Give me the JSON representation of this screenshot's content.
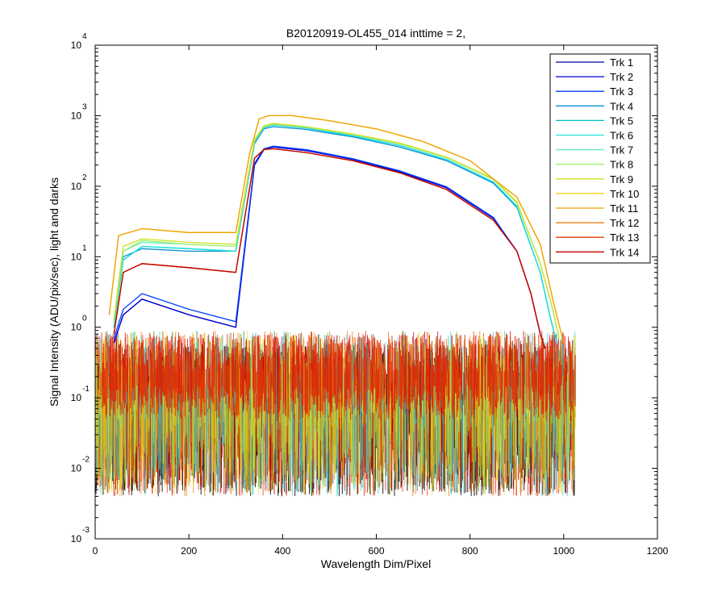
{
  "chart_data": {
    "type": "line",
    "title": "B20120919-OL455_014 inttime = 2,",
    "xlabel": "Wavelength Dim/Pixel",
    "ylabel": "Signal Intensity (ADU/pix/sec), light and darks",
    "xlim": [
      0,
      1200
    ],
    "ylim": [
      0.001,
      10000
    ],
    "yscale": "log",
    "grid": false,
    "legend_position": "top-right",
    "x_ticks": [
      {
        "label": "0",
        "value": 0
      },
      {
        "label": "200",
        "value": 200
      },
      {
        "label": "400",
        "value": 400
      },
      {
        "label": "600",
        "value": 600
      },
      {
        "label": "800",
        "value": 800
      },
      {
        "label": "1000",
        "value": 1000
      },
      {
        "label": "1200",
        "value": 1200
      }
    ],
    "y_ticks": [
      {
        "base": "10",
        "exp": "-3",
        "value": 0.001
      },
      {
        "base": "10",
        "exp": "-2",
        "value": 0.01
      },
      {
        "base": "10",
        "exp": "-1",
        "value": 0.1
      },
      {
        "base": "10",
        "exp": "0",
        "value": 1
      },
      {
        "base": "10",
        "exp": "1",
        "value": 10
      },
      {
        "base": "10",
        "exp": "2",
        "value": 100
      },
      {
        "base": "10",
        "exp": "3",
        "value": 1000
      },
      {
        "base": "10",
        "exp": "4",
        "value": 10000
      }
    ],
    "series": [
      {
        "name": "Trk 1",
        "color": "#0000a8",
        "x": [
          40,
          60,
          100,
          200,
          300,
          340,
          360,
          380,
          450,
          550,
          650,
          750,
          850,
          900,
          930,
          950,
          960
        ],
        "y": [
          0.6,
          1.5,
          2.5,
          1.5,
          1.0,
          200,
          330,
          360,
          320,
          240,
          160,
          95,
          35,
          12,
          3,
          0.8,
          0.5
        ]
      },
      {
        "name": "Trk 2",
        "color": "#0000d0",
        "x": [
          40,
          60,
          100,
          200,
          300,
          340,
          360,
          380,
          450,
          550,
          650,
          750,
          850,
          900,
          930,
          950,
          960
        ],
        "y": [
          0.6,
          1.5,
          2.5,
          1.5,
          1.0,
          200,
          330,
          360,
          320,
          240,
          160,
          95,
          35,
          12,
          3,
          0.8,
          0.5
        ]
      },
      {
        "name": "Trk 3",
        "color": "#0040ff",
        "x": [
          40,
          60,
          100,
          200,
          300,
          340,
          360,
          380,
          450,
          550,
          650,
          750,
          850,
          900,
          930,
          950,
          960
        ],
        "y": [
          0.7,
          1.8,
          3.0,
          1.8,
          1.2,
          210,
          340,
          370,
          330,
          245,
          165,
          98,
          36,
          12,
          3,
          0.8,
          0.5
        ]
      },
      {
        "name": "Trk 4",
        "color": "#0090d0",
        "x": [
          40,
          60,
          100,
          200,
          300,
          340,
          360,
          380,
          450,
          550,
          650,
          750,
          850,
          900,
          950,
          970,
          985
        ],
        "y": [
          1.0,
          10,
          13,
          12,
          12,
          400,
          650,
          700,
          640,
          500,
          360,
          230,
          110,
          50,
          6,
          1.5,
          0.6
        ]
      },
      {
        "name": "Trk 5",
        "color": "#00c0c0",
        "x": [
          40,
          60,
          100,
          200,
          300,
          340,
          360,
          380,
          450,
          550,
          650,
          750,
          850,
          900,
          950,
          970,
          985
        ],
        "y": [
          1.0,
          9,
          14,
          13,
          12,
          420,
          680,
          740,
          670,
          520,
          380,
          240,
          115,
          52,
          6,
          1.5,
          0.6
        ]
      },
      {
        "name": "Trk 6",
        "color": "#20e0e0",
        "x": [
          40,
          60,
          100,
          200,
          300,
          340,
          360,
          380,
          450,
          550,
          650,
          750,
          850,
          900,
          950,
          970,
          985
        ],
        "y": [
          1.0,
          9,
          14,
          13,
          12,
          420,
          680,
          740,
          670,
          520,
          380,
          240,
          115,
          52,
          6,
          1.5,
          0.6
        ]
      },
      {
        "name": "Trk 7",
        "color": "#60f0b0",
        "x": [
          40,
          60,
          100,
          200,
          300,
          340,
          360,
          380,
          450,
          550,
          650,
          750,
          850,
          900,
          950,
          975,
          990
        ],
        "y": [
          1.2,
          12,
          16,
          15,
          14,
          450,
          700,
          760,
          690,
          540,
          400,
          255,
          125,
          58,
          8,
          2,
          0.7
        ]
      },
      {
        "name": "Trk 8",
        "color": "#a0f070",
        "x": [
          40,
          60,
          100,
          200,
          300,
          340,
          360,
          380,
          450,
          550,
          650,
          750,
          850,
          900,
          950,
          975,
          990
        ],
        "y": [
          1.2,
          12,
          17,
          15,
          14,
          450,
          700,
          760,
          690,
          540,
          400,
          255,
          125,
          58,
          8,
          2,
          0.7
        ]
      },
      {
        "name": "Trk 9",
        "color": "#d0e020",
        "x": [
          40,
          60,
          100,
          200,
          300,
          340,
          360,
          380,
          450,
          550,
          650,
          750,
          850,
          900,
          950,
          975,
          990
        ],
        "y": [
          1.3,
          14,
          18,
          16,
          15,
          460,
          720,
          780,
          700,
          550,
          410,
          260,
          128,
          60,
          8,
          2,
          0.7
        ]
      },
      {
        "name": "Trk 10",
        "color": "#f0d000",
        "x": [
          30,
          50,
          100,
          200,
          300,
          330,
          350,
          370,
          420,
          500,
          600,
          700,
          800,
          900,
          950,
          980,
          1000
        ],
        "y": [
          1.5,
          20,
          25,
          22,
          22,
          300,
          900,
          1000,
          1000,
          850,
          650,
          430,
          230,
          70,
          15,
          2,
          0.6
        ]
      },
      {
        "name": "Trk 11",
        "color": "#f0a000",
        "x": [
          30,
          50,
          100,
          200,
          300,
          330,
          350,
          370,
          420,
          500,
          600,
          700,
          800,
          900,
          950,
          980,
          1000
        ],
        "y": [
          1.5,
          20,
          25,
          22,
          22,
          300,
          900,
          1000,
          1000,
          850,
          650,
          430,
          230,
          70,
          15,
          2,
          0.6
        ]
      },
      {
        "name": "Trk 12",
        "color": "#f07000",
        "x": [
          40,
          60,
          100,
          200,
          300,
          340,
          360,
          380,
          450,
          550,
          650,
          750,
          850,
          900,
          930,
          950,
          960
        ],
        "y": [
          0.8,
          6,
          8,
          7,
          6,
          250,
          330,
          340,
          300,
          230,
          155,
          90,
          33,
          12,
          3,
          0.8,
          0.5
        ]
      },
      {
        "name": "Trk 13",
        "color": "#e04000",
        "x": [
          40,
          60,
          100,
          200,
          300,
          340,
          360,
          380,
          450,
          550,
          650,
          750,
          850,
          900,
          930,
          950,
          960
        ],
        "y": [
          0.8,
          6,
          8,
          7,
          6,
          250,
          330,
          340,
          300,
          230,
          155,
          90,
          33,
          12,
          3,
          0.8,
          0.5
        ]
      },
      {
        "name": "Trk 14",
        "color": "#c00000",
        "x": [
          40,
          60,
          100,
          200,
          300,
          340,
          360,
          380,
          450,
          550,
          650,
          750,
          850,
          900,
          930,
          950,
          960
        ],
        "y": [
          0.8,
          6,
          8,
          7,
          6,
          250,
          330,
          340,
          300,
          230,
          155,
          90,
          33,
          12,
          3,
          0.8,
          0.5
        ]
      }
    ],
    "dark_noise": {
      "colors": [
        "#000000",
        "#e02000",
        "#c00000",
        "#f07000",
        "#30d0d0",
        "#e0e020"
      ],
      "x_range": [
        0,
        1025
      ],
      "y_floor": 0.004,
      "y_ceiling": 0.9
    }
  }
}
